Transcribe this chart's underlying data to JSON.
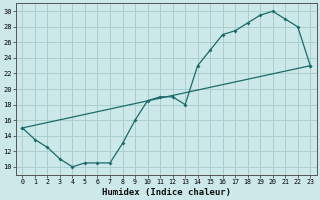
{
  "xlabel": "Humidex (Indice chaleur)",
  "background_color": "#cce8e8",
  "grid_color": "#aacfcf",
  "line_color": "#1a6b6b",
  "xlim": [
    -0.5,
    23.5
  ],
  "ylim": [
    9,
    31
  ],
  "xticks": [
    0,
    1,
    2,
    3,
    4,
    5,
    6,
    7,
    8,
    9,
    10,
    11,
    12,
    13,
    14,
    15,
    16,
    17,
    18,
    19,
    20,
    21,
    22,
    23
  ],
  "yticks": [
    10,
    12,
    14,
    16,
    18,
    20,
    22,
    24,
    26,
    28,
    30
  ],
  "line1_x": [
    0,
    1,
    2,
    3,
    4,
    5,
    6,
    7,
    8,
    9,
    10,
    11,
    12,
    13,
    14,
    15,
    16,
    17,
    18,
    19,
    20,
    21,
    22,
    23
  ],
  "line1_y": [
    15,
    13.5,
    12.5,
    11,
    10,
    10.5,
    10.5,
    10.5,
    13,
    16,
    18.5,
    19,
    19,
    18,
    23,
    25,
    27,
    27.5,
    28.5,
    29.5,
    30,
    29,
    28,
    23
  ],
  "line2_x": [
    0,
    23
  ],
  "line2_y": [
    15,
    23
  ]
}
